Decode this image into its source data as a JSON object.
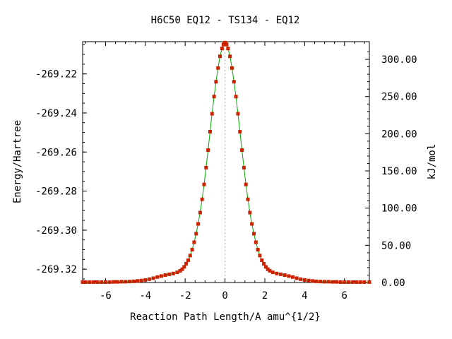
{
  "chart_data": {
    "type": "line",
    "title": "H6C50    EQ12 - TS134 - EQ12",
    "xlabel": "Reaction Path Length/A amu^{1/2}",
    "ylabel_left": "Energy/Hartree",
    "ylabel_right": "kJ/mol",
    "xlim": [
      -7.15,
      7.25
    ],
    "ylim_left": [
      -269.3268,
      -269.2035
    ],
    "ylim_right": [
      0,
      323.8
    ],
    "x_ticks": [
      {
        "value": -6,
        "label": "-6"
      },
      {
        "value": -4,
        "label": "-4"
      },
      {
        "value": -2,
        "label": "-2"
      },
      {
        "value": 0,
        "label": "0"
      },
      {
        "value": 2,
        "label": "2"
      },
      {
        "value": 4,
        "label": "4"
      },
      {
        "value": 6,
        "label": "6"
      }
    ],
    "y_ticks_left": [
      {
        "value": -269.22,
        "label": "-269.22"
      },
      {
        "value": -269.24,
        "label": "-269.24"
      },
      {
        "value": -269.26,
        "label": "-269.26"
      },
      {
        "value": -269.28,
        "label": "-269.28"
      },
      {
        "value": -269.3,
        "label": "-269.30"
      },
      {
        "value": -269.32,
        "label": "-269.32"
      }
    ],
    "y_ticks_right": [
      {
        "value": 0,
        "label": "0.00"
      },
      {
        "value": 50,
        "label": "50.00"
      },
      {
        "value": 100,
        "label": "100.00"
      },
      {
        "value": 150,
        "label": "150.00"
      },
      {
        "value": 200,
        "label": "200.00"
      },
      {
        "value": 250,
        "label": "250.00"
      },
      {
        "value": 300,
        "label": "300.00"
      }
    ],
    "ts_marker_x": 0,
    "grid": false,
    "line_color": "#00aa00",
    "marker_color": "#cc2200",
    "series": [
      {
        "x": [
          -7.15,
          -7.0,
          -6.8,
          -6.6,
          -6.4,
          -6.2,
          -6.0,
          -5.8,
          -5.6,
          -5.4,
          -5.2,
          -5.0,
          -4.8,
          -4.6,
          -4.4,
          -4.2,
          -4.0,
          -3.8,
          -3.6,
          -3.4,
          -3.2,
          -3.0,
          -2.8,
          -2.6,
          -2.4,
          -2.25,
          -2.15,
          -2.05,
          -1.95,
          -1.85,
          -1.75,
          -1.65,
          -1.55,
          -1.45,
          -1.35,
          -1.25,
          -1.15,
          -1.05,
          -0.95,
          -0.85,
          -0.75,
          -0.65,
          -0.55,
          -0.45,
          -0.35,
          -0.25,
          -0.15,
          -0.08,
          -0.04,
          0.0,
          0.04,
          0.08,
          0.15,
          0.25,
          0.35,
          0.45,
          0.55,
          0.65,
          0.75,
          0.85,
          0.95,
          1.05,
          1.15,
          1.25,
          1.35,
          1.45,
          1.55,
          1.65,
          1.75,
          1.85,
          1.95,
          2.05,
          2.15,
          2.25,
          2.4,
          2.6,
          2.8,
          3.0,
          3.2,
          3.4,
          3.6,
          3.8,
          4.0,
          4.2,
          4.4,
          4.6,
          4.8,
          5.0,
          5.2,
          5.4,
          5.6,
          5.8,
          6.0,
          6.2,
          6.4,
          6.6,
          6.8,
          7.0,
          7.25
        ],
        "y": [
          -269.3266,
          -269.3266,
          -269.3266,
          -269.3266,
          -269.3266,
          -269.3266,
          -269.3266,
          -269.3266,
          -269.3265,
          -269.3265,
          -269.3264,
          -269.3264,
          -269.3263,
          -269.3262,
          -269.326,
          -269.3258,
          -269.3255,
          -269.3251,
          -269.3246,
          -269.324,
          -269.3235,
          -269.323,
          -269.3226,
          -269.3222,
          -269.3216,
          -269.3208,
          -269.32,
          -269.3188,
          -269.3172,
          -269.3154,
          -269.313,
          -269.31,
          -269.3062,
          -269.3018,
          -269.2968,
          -269.291,
          -269.2842,
          -269.2766,
          -269.268,
          -269.259,
          -269.2496,
          -269.2404,
          -269.2316,
          -269.224,
          -269.217,
          -269.211,
          -269.207,
          -269.205,
          -269.2042,
          -269.204,
          -269.2042,
          -269.205,
          -269.207,
          -269.211,
          -269.217,
          -269.224,
          -269.2316,
          -269.2404,
          -269.2496,
          -269.259,
          -269.268,
          -269.2766,
          -269.2842,
          -269.291,
          -269.2968,
          -269.3018,
          -269.3062,
          -269.31,
          -269.313,
          -269.3154,
          -269.3172,
          -269.3188,
          -269.32,
          -269.3208,
          -269.3216,
          -269.3222,
          -269.3226,
          -269.323,
          -269.3235,
          -269.324,
          -269.3246,
          -269.3251,
          -269.3255,
          -269.3258,
          -269.326,
          -269.3262,
          -269.3263,
          -269.3264,
          -269.3264,
          -269.3265,
          -269.3265,
          -269.3266,
          -269.3266,
          -269.3266,
          -269.3266,
          -269.3266,
          -269.3266,
          -269.3266,
          -269.3266
        ]
      }
    ]
  }
}
